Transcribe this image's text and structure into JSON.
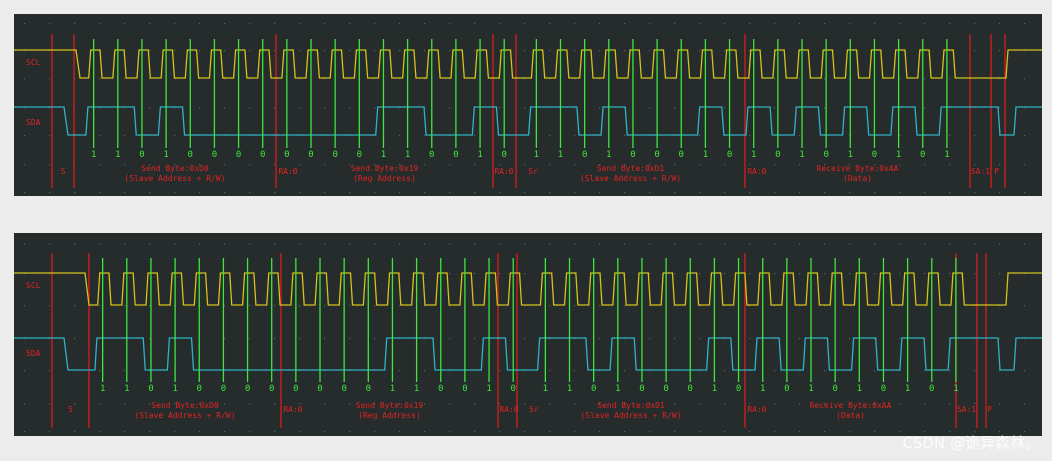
{
  "watermark": "CSDN @诡异森林。",
  "colors": {
    "background": "#262b2b",
    "scl": "#d4c419",
    "sda": "#2fb3c6",
    "bit_marker": "#3ee63e",
    "frame_marker": "#d81c1c",
    "label": "#e02424"
  },
  "traces": {
    "scl_label": "SCL",
    "sda_label": "SDA"
  },
  "transactions": [
    {
      "id": "top",
      "bits": [
        "1",
        "1",
        "0",
        "1",
        "0",
        "0",
        "0",
        "0",
        "0",
        "0",
        "0",
        "0",
        "1",
        "1",
        "0",
        "0",
        "1",
        "0",
        "1",
        "1",
        "0",
        "1",
        "0",
        "0",
        "0",
        "1",
        "0",
        "1",
        "0",
        "1",
        "0",
        "1",
        "0",
        "1",
        "0",
        "1"
      ],
      "sda_levels": [
        1,
        1,
        0,
        1,
        0,
        0,
        0,
        0,
        0,
        0,
        0,
        0,
        1,
        1,
        0,
        0,
        1,
        0,
        1,
        1,
        0,
        1,
        0,
        0,
        0,
        1,
        0,
        1,
        0,
        1,
        0,
        1,
        0,
        1,
        0,
        1
      ],
      "events": [
        "S",
        "RA:0",
        "RA:0",
        "Sr",
        "RA:0",
        "SA:1",
        "P"
      ],
      "fields": [
        {
          "line1": "Send Byte:0xD0",
          "line2": "(Slave Address + R/W)"
        },
        {
          "line1": "Send Byte:0x19",
          "line2": "(Reg Address)"
        },
        {
          "line1": "Send Byte:0xD1",
          "line2": "(Slave Address + R/W)"
        },
        {
          "line1": "Receive Byte:0xAA",
          "line2": "(Data)"
        }
      ]
    },
    {
      "id": "bottom",
      "bits": [
        "1",
        "1",
        "0",
        "1",
        "0",
        "0",
        "0",
        "0",
        "0",
        "0",
        "0",
        "0",
        "1",
        "1",
        "0",
        "0",
        "1",
        "0",
        "1",
        "1",
        "0",
        "1",
        "0",
        "0",
        "0",
        "1",
        "0",
        "1",
        "0",
        "1",
        "0",
        "1",
        "0",
        "1",
        "0",
        "1"
      ],
      "sda_levels": [
        1,
        1,
        0,
        1,
        0,
        0,
        0,
        0,
        0,
        0,
        0,
        0,
        1,
        1,
        0,
        0,
        1,
        0,
        1,
        1,
        0,
        1,
        0,
        0,
        0,
        1,
        0,
        1,
        0,
        1,
        0,
        1,
        0,
        1,
        0,
        1
      ],
      "events": [
        "S",
        "RA:0",
        "RA:0",
        "Sr",
        "RA:0",
        "SA:1",
        "P"
      ],
      "fields": [
        {
          "line1": "Send Byte:0xD0",
          "line2": "(Slave Address + R/W)"
        },
        {
          "line1": "Send Byte:0x19",
          "line2": "(Reg Address)"
        },
        {
          "line1": "Send Byte:0xD1",
          "line2": "(Slave Address + R/W)"
        },
        {
          "line1": "Receive Byte:0xAA",
          "line2": "(Data)"
        }
      ]
    }
  ]
}
